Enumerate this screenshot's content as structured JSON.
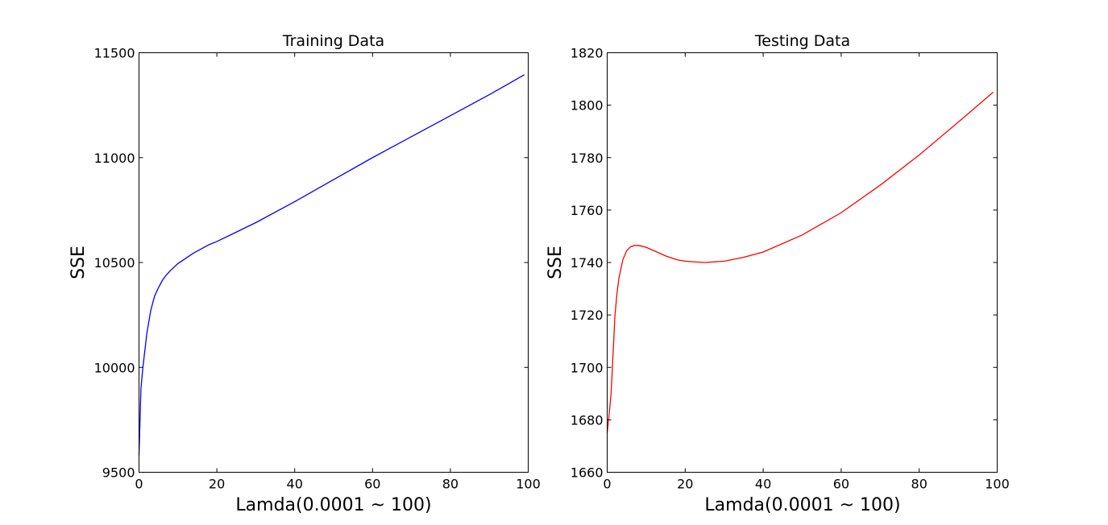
{
  "chart_data": [
    {
      "type": "line",
      "title": "Training Data",
      "xlabel": "Lamda(0.0001 ~ 100)",
      "ylabel": "SSE",
      "xlim": [
        0,
        100
      ],
      "ylim": [
        9500,
        11500
      ],
      "xticks": [
        "0",
        "20",
        "40",
        "60",
        "80",
        "100"
      ],
      "yticks": [
        "9500",
        "10000",
        "10500",
        "11000",
        "11500"
      ],
      "grid": false,
      "color": "#0000ff",
      "series": [
        {
          "x": [
            0.0001,
            0.5,
            1,
            1.5,
            2,
            3,
            4,
            5,
            6,
            7,
            8,
            10,
            12,
            14,
            16,
            18,
            20,
            25,
            30,
            40,
            50,
            60,
            70,
            80,
            90,
            99
          ],
          "y": [
            9580,
            9900,
            10000,
            10080,
            10160,
            10270,
            10340,
            10380,
            10415,
            10440,
            10460,
            10495,
            10520,
            10545,
            10565,
            10585,
            10600,
            10645,
            10690,
            10790,
            10895,
            11000,
            11100,
            11200,
            11300,
            11395
          ]
        }
      ]
    },
    {
      "type": "line",
      "title": "Testing Data",
      "xlabel": "Lamda(0.0001 ~ 100)",
      "ylabel": "SSE",
      "xlim": [
        0,
        100
      ],
      "ylim": [
        1660,
        1820
      ],
      "xticks": [
        "0",
        "20",
        "40",
        "60",
        "80",
        "100"
      ],
      "yticks": [
        "1660",
        "1680",
        "1700",
        "1720",
        "1740",
        "1760",
        "1780",
        "1800",
        "1820"
      ],
      "grid": false,
      "color": "#ff0000",
      "series": [
        {
          "x": [
            0.0001,
            0.5,
            1,
            1.5,
            2,
            2.5,
            3,
            4,
            5,
            6,
            7,
            8,
            9,
            10,
            12,
            15,
            18,
            20,
            25,
            30,
            35,
            40,
            50,
            60,
            70,
            80,
            90,
            99
          ],
          "y": [
            1675,
            1682,
            1690,
            1705,
            1720,
            1728,
            1734,
            1741,
            1744.5,
            1746,
            1746.5,
            1746.5,
            1746.2,
            1745.8,
            1744.5,
            1742.5,
            1741,
            1740.5,
            1740,
            1740.5,
            1742,
            1744,
            1750.5,
            1759,
            1769.5,
            1781,
            1793.5,
            1805
          ]
        }
      ]
    }
  ]
}
